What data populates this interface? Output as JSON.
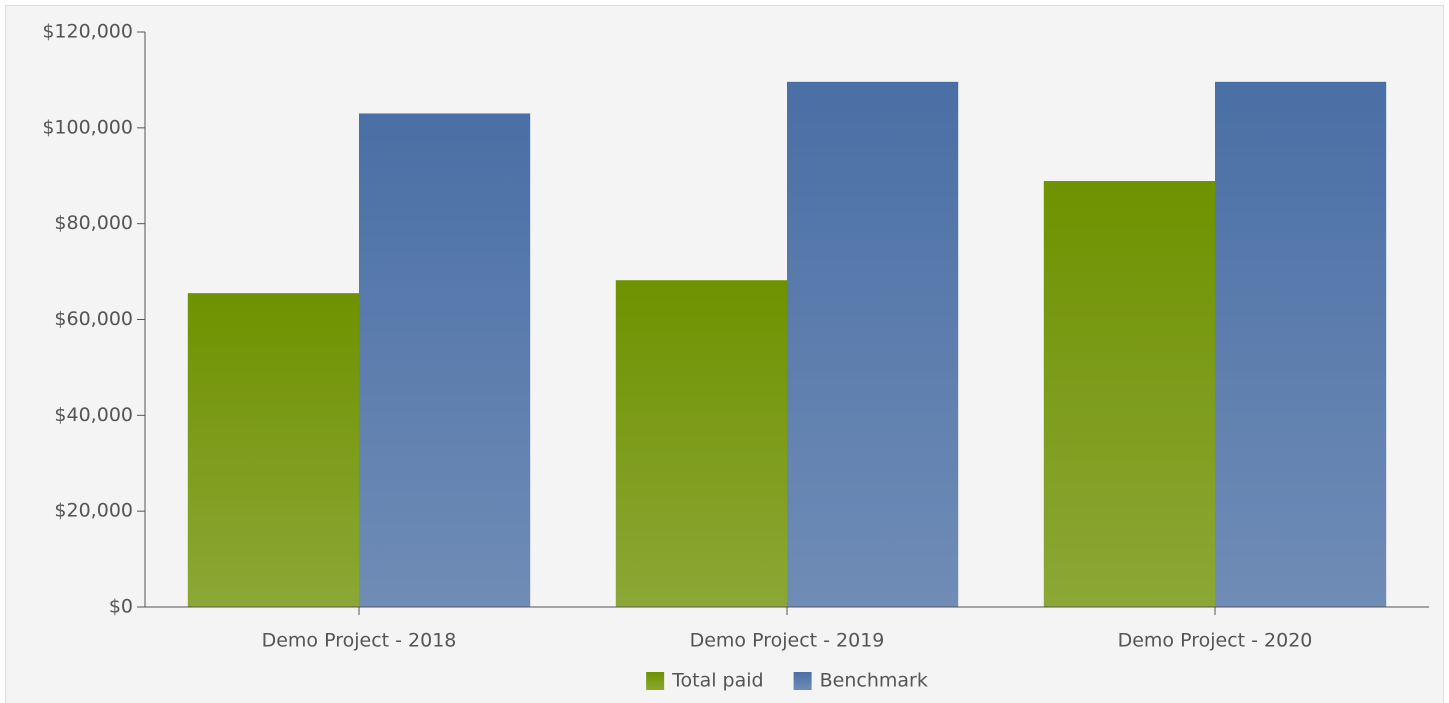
{
  "chart_data": {
    "type": "bar",
    "categories": [
      "Demo Project - 2018",
      "Demo Project - 2019",
      "Demo Project - 2020"
    ],
    "series": [
      {
        "name": "Total paid",
        "color": "#6e9200",
        "values": [
          65500,
          68200,
          88900
        ]
      },
      {
        "name": "Benchmark",
        "color": "#4a6fa5",
        "values": [
          103000,
          109600,
          109600
        ]
      }
    ],
    "ylim": [
      0,
      120000
    ],
    "yticks": [
      {
        "value": 0,
        "label": "$0"
      },
      {
        "value": 20000,
        "label": "$20,000"
      },
      {
        "value": 40000,
        "label": "$40,000"
      },
      {
        "value": 60000,
        "label": "$60,000"
      },
      {
        "value": 80000,
        "label": "$80,000"
      },
      {
        "value": 100000,
        "label": "$100,000"
      },
      {
        "value": 120000,
        "label": "$120,000"
      }
    ],
    "legend": "bottom"
  }
}
